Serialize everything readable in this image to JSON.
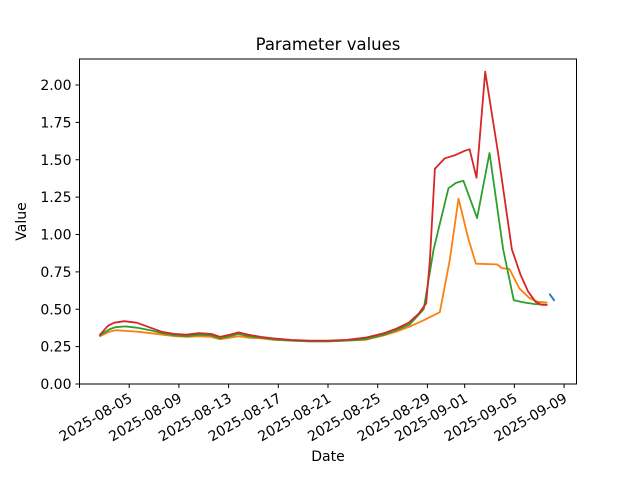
{
  "chart_data": {
    "type": "line",
    "title": "Parameter values",
    "xlabel": "Date",
    "ylabel": "Value",
    "grid": false,
    "legend": null,
    "background_color": "#ffffff",
    "axes_color": "#000000",
    "x_axis": {
      "unit": "date",
      "epoch_day0": "2025-08-01",
      "range_days": [
        0,
        40
      ],
      "label_rotation_deg": 30,
      "ticks": [
        {
          "day": 0,
          "label": ""
        },
        {
          "day": 4,
          "label": "2025-08-05"
        },
        {
          "day": 8,
          "label": "2025-08-09"
        },
        {
          "day": 12,
          "label": "2025-08-13"
        },
        {
          "day": 16,
          "label": "2025-08-17"
        },
        {
          "day": 20,
          "label": "2025-08-21"
        },
        {
          "day": 24,
          "label": "2025-08-25"
        },
        {
          "day": 28,
          "label": "2025-08-29"
        },
        {
          "day": 31,
          "label": "2025-09-01"
        },
        {
          "day": 35,
          "label": "2025-09-05"
        },
        {
          "day": 39,
          "label": "2025-09-09"
        }
      ]
    },
    "y_axis": {
      "range": [
        0,
        2.174
      ],
      "ticks": [
        "0.00",
        "0.25",
        "0.50",
        "0.75",
        "1.00",
        "1.25",
        "1.50",
        "1.75",
        "2.00"
      ]
    },
    "series": [
      {
        "name": "blue",
        "color": "#1f77b4",
        "points": [
          [
            37.85,
            0.6
          ],
          [
            38.2,
            0.56
          ]
        ]
      },
      {
        "name": "orange",
        "color": "#ff7f0e",
        "points": [
          [
            1.65,
            0.32
          ],
          [
            2.4,
            0.35
          ],
          [
            2.9,
            0.36
          ],
          [
            3.7,
            0.355
          ],
          [
            4.7,
            0.35
          ],
          [
            5.7,
            0.34
          ],
          [
            6.7,
            0.33
          ],
          [
            7.7,
            0.32
          ],
          [
            8.7,
            0.315
          ],
          [
            9.6,
            0.32
          ],
          [
            10.6,
            0.315
          ],
          [
            11.3,
            0.3
          ],
          [
            12.1,
            0.31
          ],
          [
            12.8,
            0.32
          ],
          [
            13.6,
            0.31
          ],
          [
            14.6,
            0.305
          ],
          [
            15.6,
            0.295
          ],
          [
            17,
            0.29
          ],
          [
            18.5,
            0.285
          ],
          [
            20,
            0.285
          ],
          [
            21.5,
            0.29
          ],
          [
            23,
            0.295
          ],
          [
            24.5,
            0.325
          ],
          [
            25.5,
            0.35
          ],
          [
            26.6,
            0.385
          ],
          [
            27.8,
            0.43
          ],
          [
            29,
            0.48
          ],
          [
            29.8,
            0.83
          ],
          [
            30.5,
            1.24
          ],
          [
            31.3,
            0.97
          ],
          [
            31.9,
            0.805
          ],
          [
            33.6,
            0.8
          ],
          [
            34,
            0.775
          ],
          [
            34.6,
            0.77
          ],
          [
            35.4,
            0.64
          ],
          [
            36.2,
            0.575
          ],
          [
            36.9,
            0.55
          ],
          [
            37.6,
            0.545
          ]
        ]
      },
      {
        "name": "green",
        "color": "#2ca02c",
        "points": [
          [
            1.65,
            0.325
          ],
          [
            2.4,
            0.365
          ],
          [
            2.9,
            0.38
          ],
          [
            3.7,
            0.385
          ],
          [
            4.7,
            0.375
          ],
          [
            5.7,
            0.36
          ],
          [
            6.7,
            0.34
          ],
          [
            7.7,
            0.325
          ],
          [
            8.7,
            0.32
          ],
          [
            9.6,
            0.33
          ],
          [
            10.6,
            0.325
          ],
          [
            11.3,
            0.305
          ],
          [
            12.1,
            0.32
          ],
          [
            12.8,
            0.335
          ],
          [
            13.6,
            0.32
          ],
          [
            14.6,
            0.31
          ],
          [
            15.6,
            0.3
          ],
          [
            17,
            0.29
          ],
          [
            18.5,
            0.285
          ],
          [
            20,
            0.285
          ],
          [
            21.5,
            0.29
          ],
          [
            23,
            0.3
          ],
          [
            24.5,
            0.33
          ],
          [
            25.5,
            0.36
          ],
          [
            26.6,
            0.4
          ],
          [
            27.7,
            0.5
          ],
          [
            28.5,
            0.9
          ],
          [
            29.7,
            1.31
          ],
          [
            30.3,
            1.345
          ],
          [
            30.9,
            1.36
          ],
          [
            32,
            1.11
          ],
          [
            33,
            1.545
          ],
          [
            34.1,
            0.9
          ],
          [
            34.95,
            0.56
          ],
          [
            35.8,
            0.545
          ],
          [
            36.6,
            0.535
          ],
          [
            37.6,
            0.53
          ]
        ]
      },
      {
        "name": "red",
        "color": "#d62728",
        "points": [
          [
            1.65,
            0.33
          ],
          [
            2.3,
            0.39
          ],
          [
            2.8,
            0.41
          ],
          [
            3.6,
            0.42
          ],
          [
            4.6,
            0.41
          ],
          [
            5.6,
            0.38
          ],
          [
            6.6,
            0.35
          ],
          [
            7.6,
            0.335
          ],
          [
            8.6,
            0.33
          ],
          [
            9.6,
            0.34
          ],
          [
            10.6,
            0.335
          ],
          [
            11.3,
            0.315
          ],
          [
            12.1,
            0.33
          ],
          [
            12.8,
            0.345
          ],
          [
            13.6,
            0.33
          ],
          [
            14.6,
            0.315
          ],
          [
            15.6,
            0.305
          ],
          [
            17,
            0.295
          ],
          [
            18.5,
            0.29
          ],
          [
            20,
            0.29
          ],
          [
            21.5,
            0.295
          ],
          [
            23,
            0.31
          ],
          [
            24.5,
            0.34
          ],
          [
            25.5,
            0.37
          ],
          [
            26.5,
            0.41
          ],
          [
            27.3,
            0.47
          ],
          [
            27.9,
            0.54
          ],
          [
            28.2,
            0.83
          ],
          [
            28.6,
            1.44
          ],
          [
            29.4,
            1.51
          ],
          [
            30.2,
            1.53
          ],
          [
            31,
            1.56
          ],
          [
            31.4,
            1.57
          ],
          [
            31.95,
            1.38
          ],
          [
            32.65,
            2.09
          ],
          [
            33.7,
            1.54
          ],
          [
            34.8,
            0.9
          ],
          [
            35.5,
            0.73
          ],
          [
            36.1,
            0.62
          ],
          [
            36.7,
            0.55
          ],
          [
            37.2,
            0.53
          ],
          [
            37.6,
            0.53
          ]
        ]
      }
    ]
  }
}
